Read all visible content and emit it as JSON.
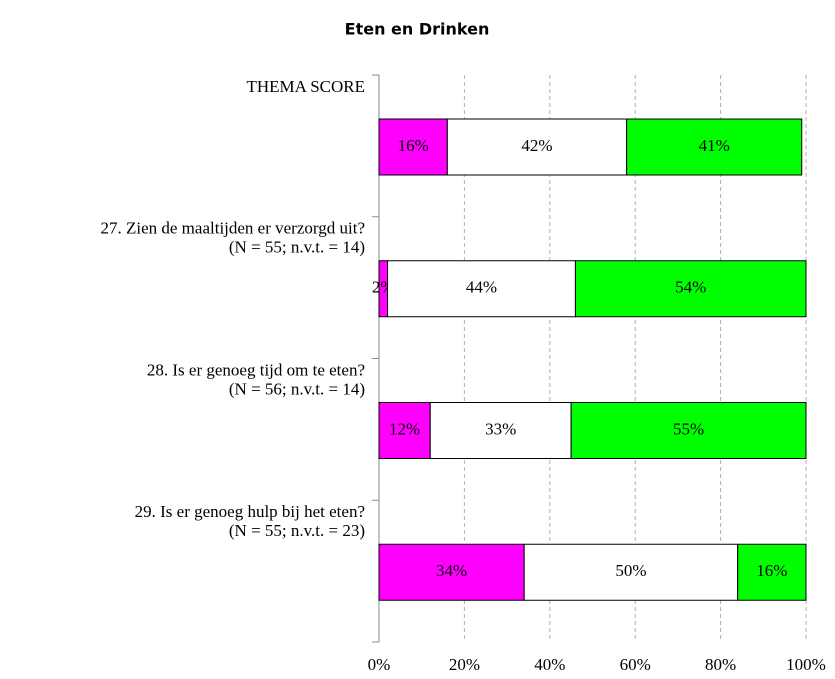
{
  "chart_data": {
    "type": "stacked-barh",
    "title": "Eten en Drinken",
    "categories": [
      [
        "THEMA SCORE"
      ],
      [
        "27. Zien de maaltijden er verzorgd uit?",
        "(N = 55; n.v.t. = 14)"
      ],
      [
        "28. Is er genoeg tijd om te eten?",
        "(N = 56; n.v.t. = 14)"
      ],
      [
        "29. Is er genoeg hulp bij het eten?",
        "(N = 55; n.v.t. = 23)"
      ]
    ],
    "series": [
      {
        "color": "#ff00ff",
        "values": [
          16,
          2,
          12,
          34
        ],
        "value_labels": [
          "16%",
          "2%",
          "12%",
          "34%"
        ]
      },
      {
        "color": "#ffffff",
        "values": [
          42,
          44,
          33,
          50
        ],
        "value_labels": [
          "42%",
          "44%",
          "33%",
          "50%"
        ]
      },
      {
        "color": "#00ff00",
        "values": [
          41,
          54,
          55,
          16
        ],
        "value_labels": [
          "41%",
          "54%",
          "55%",
          "16%"
        ]
      }
    ],
    "xlim": [
      0,
      100
    ],
    "xticks": [
      {
        "value": 0,
        "label": "0%"
      },
      {
        "value": 20,
        "label": "20%"
      },
      {
        "value": 40,
        "label": "40%"
      },
      {
        "value": 60,
        "label": "60%"
      },
      {
        "value": 80,
        "label": "80%"
      },
      {
        "value": 100,
        "label": "100%"
      }
    ],
    "grid": true
  }
}
